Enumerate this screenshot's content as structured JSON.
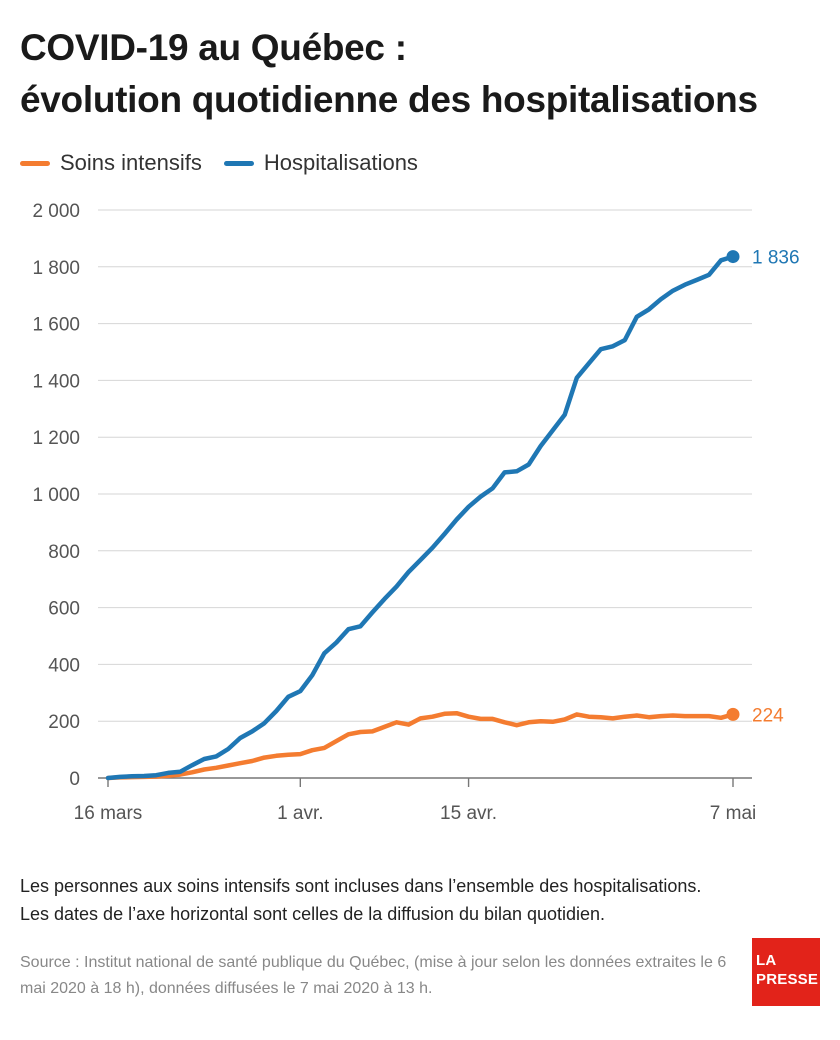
{
  "title_line1": "COVID-19 au Québec :",
  "title_line2": "évolution quotidienne des hospitalisations",
  "legend": [
    {
      "label": "Soins intensifs",
      "color": "#f47c30"
    },
    {
      "label": "Hospitalisations",
      "color": "#1f77b4"
    }
  ],
  "notes": [
    "Les personnes aux soins intensifs sont incluses dans l’ensemble des hospitalisations.",
    "Les dates de l’axe horizontal sont celles de la diffusion du bilan quotidien."
  ],
  "source": "Source : Institut national de santé publique du Québec, (mise à jour selon les données extraites le 6 mai 2020 à 18 h), données diffusées le 7 mai 2020 à 13 h.",
  "logo": {
    "line1": "LA",
    "line2": "PRESSE"
  },
  "chart_data": {
    "type": "line",
    "x_start": "16 mars",
    "x_ticks": [
      {
        "label": "16 mars",
        "day": 0
      },
      {
        "label": "1 avr.",
        "day": 16
      },
      {
        "label": "15 avr.",
        "day": 30
      },
      {
        "label": "7 mai",
        "day": 52
      }
    ],
    "ylim": [
      0,
      2000
    ],
    "yticks": [
      0,
      200,
      400,
      600,
      800,
      1000,
      1200,
      1400,
      1600,
      1800,
      2000
    ],
    "ytick_labels": [
      "0",
      "200",
      "400",
      "600",
      "800",
      "1 000",
      "1 200",
      "1 400",
      "1 600",
      "1 800",
      "2 000"
    ],
    "grid": true,
    "legend_position": "top-left",
    "series": [
      {
        "name": "Hospitalisations",
        "color": "#1f77b4",
        "end_label": "1 836",
        "values": [
          0,
          4,
          6,
          7,
          10,
          18,
          22,
          45,
          67,
          76,
          102,
          141,
          164,
          193,
          236,
          286,
          306,
          362,
          439,
          477,
          524,
          534,
          583,
          630,
          674,
          725,
          768,
          811,
          859,
          910,
          955,
          991,
          1020,
          1076,
          1080,
          1104,
          1169,
          1224,
          1279,
          1409,
          1460,
          1510,
          1520,
          1542,
          1624,
          1650,
          1686,
          1716,
          1737,
          1754,
          1772,
          1823,
          1836
        ]
      },
      {
        "name": "Soins intensifs",
        "color": "#f47c30",
        "end_label": "224",
        "values": [
          0,
          2,
          3,
          4,
          5,
          8,
          12,
          20,
          30,
          36,
          44,
          52,
          60,
          72,
          78,
          82,
          84,
          98,
          106,
          130,
          154,
          162,
          164,
          180,
          196,
          188,
          210,
          216,
          226,
          228,
          216,
          208,
          208,
          196,
          186,
          196,
          200,
          198,
          206,
          224,
          216,
          214,
          210,
          216,
          220,
          214,
          218,
          220,
          218,
          218,
          218,
          212,
          224
        ]
      }
    ]
  }
}
